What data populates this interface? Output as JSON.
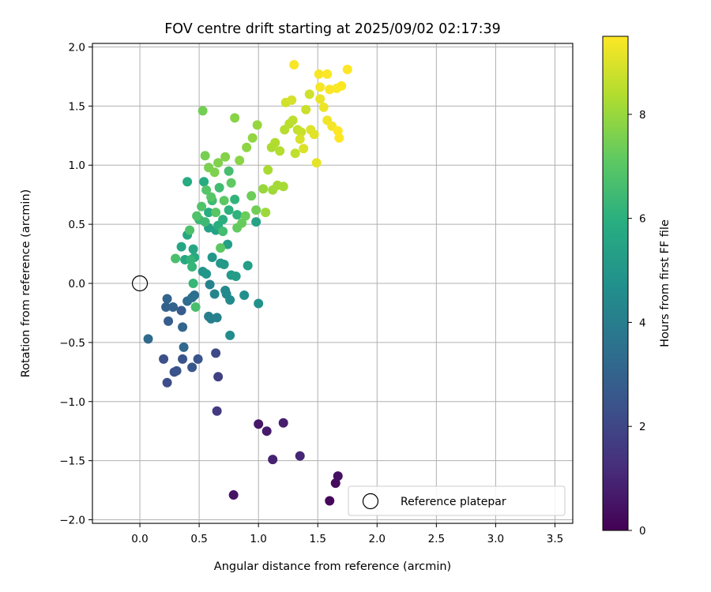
{
  "chart_data": {
    "type": "scatter",
    "title": "FOV centre drift starting at 2025/09/02 02:17:39",
    "xlabel": "Angular distance from reference (arcmin)",
    "ylabel": "Rotation from reference (arcmin)",
    "xlim": [
      -0.4,
      3.65
    ],
    "ylim": [
      -2.03,
      2.03
    ],
    "xticks": [
      0.0,
      0.5,
      1.0,
      1.5,
      2.0,
      2.5,
      3.0,
      3.5
    ],
    "xtick_labels": [
      "0.0",
      "0.5",
      "1.0",
      "1.5",
      "2.0",
      "2.5",
      "3.0",
      "3.5"
    ],
    "yticks": [
      -2.0,
      -1.5,
      -1.0,
      -0.5,
      0.0,
      0.5,
      1.0,
      1.5,
      2.0
    ],
    "ytick_labels": [
      "−2.0",
      "−1.5",
      "−1.0",
      "−0.5",
      "0.0",
      "0.5",
      "1.0",
      "1.5",
      "2.0"
    ],
    "grid": true,
    "colormap": "viridis",
    "colorbar": {
      "label": "Hours from first FF file",
      "range": [
        0,
        9.5
      ],
      "ticks": [
        0,
        2,
        4,
        6,
        8
      ],
      "tick_labels": [
        "0",
        "2",
        "4",
        "6",
        "8"
      ]
    },
    "legend": {
      "position": "lower-right",
      "entries": [
        "Reference platepar"
      ]
    },
    "reference": {
      "x": 0.0,
      "y": 0.0,
      "label": "Reference platepar"
    },
    "series": [
      {
        "columns": [
          "x",
          "y",
          "hours"
        ],
        "points": [
          [
            1.6,
            -1.84,
            0.2
          ],
          [
            1.65,
            -1.69,
            0.3
          ],
          [
            1.67,
            -1.63,
            0.4
          ],
          [
            0.79,
            -1.79,
            0.5
          ],
          [
            1.0,
            -1.19,
            0.6
          ],
          [
            1.07,
            -1.25,
            0.7
          ],
          [
            1.21,
            -1.18,
            0.8
          ],
          [
            1.12,
            -1.49,
            0.9
          ],
          [
            1.35,
            -1.46,
            1.0
          ],
          [
            0.65,
            -1.08,
            1.6
          ],
          [
            0.66,
            -0.79,
            1.8
          ],
          [
            0.64,
            -0.59,
            2.1
          ],
          [
            0.23,
            -0.84,
            2.2
          ],
          [
            0.2,
            -0.64,
            2.3
          ],
          [
            0.29,
            -0.75,
            2.35
          ],
          [
            0.31,
            -0.74,
            2.4
          ],
          [
            0.36,
            -0.64,
            2.45
          ],
          [
            0.49,
            -0.64,
            2.5
          ],
          [
            0.44,
            -0.71,
            2.6
          ],
          [
            0.35,
            -0.23,
            2.7
          ],
          [
            0.24,
            -0.32,
            2.8
          ],
          [
            0.22,
            -0.2,
            2.9
          ],
          [
            0.28,
            -0.2,
            3.0
          ],
          [
            0.23,
            -0.13,
            3.05
          ],
          [
            0.36,
            -0.37,
            3.1
          ],
          [
            0.37,
            -0.54,
            3.2
          ],
          [
            0.07,
            -0.47,
            3.3
          ],
          [
            0.4,
            -0.15,
            3.35
          ],
          [
            0.46,
            -0.1,
            3.4
          ],
          [
            0.44,
            -0.12,
            3.45
          ],
          [
            0.58,
            -0.28,
            4.0
          ],
          [
            0.6,
            -0.3,
            4.05
          ],
          [
            0.65,
            -0.29,
            4.1
          ],
          [
            0.59,
            -0.01,
            4.2
          ],
          [
            0.63,
            -0.09,
            4.3
          ],
          [
            0.72,
            -0.06,
            4.4
          ],
          [
            0.73,
            -0.09,
            4.45
          ],
          [
            0.76,
            -0.14,
            4.5
          ],
          [
            0.76,
            -0.44,
            4.6
          ],
          [
            0.88,
            -0.1,
            4.7
          ],
          [
            1.0,
            -0.17,
            4.8
          ],
          [
            0.53,
            0.1,
            4.9
          ],
          [
            0.56,
            0.08,
            4.95
          ],
          [
            0.61,
            0.22,
            5.0
          ],
          [
            0.68,
            0.17,
            5.05
          ],
          [
            0.71,
            0.16,
            5.1
          ],
          [
            0.77,
            0.07,
            5.15
          ],
          [
            0.81,
            0.06,
            5.2
          ],
          [
            0.91,
            0.15,
            5.3
          ],
          [
            0.74,
            0.33,
            5.35
          ],
          [
            0.58,
            0.47,
            5.4
          ],
          [
            0.64,
            0.45,
            5.45
          ],
          [
            0.98,
            0.52,
            5.5
          ],
          [
            0.35,
            0.31,
            5.55
          ],
          [
            0.4,
            0.41,
            5.6
          ],
          [
            0.45,
            0.29,
            5.65
          ],
          [
            0.38,
            0.2,
            5.7
          ],
          [
            0.46,
            0.22,
            5.75
          ],
          [
            0.4,
            0.86,
            5.8
          ],
          [
            0.54,
            0.86,
            5.85
          ],
          [
            0.58,
            0.6,
            5.9
          ],
          [
            0.66,
            0.49,
            5.95
          ],
          [
            0.7,
            0.54,
            6.0
          ],
          [
            0.75,
            0.62,
            6.05
          ],
          [
            0.82,
            0.58,
            6.1
          ],
          [
            0.8,
            0.71,
            6.15
          ],
          [
            0.43,
            0.2,
            6.2
          ],
          [
            0.44,
            0.14,
            6.25
          ],
          [
            0.45,
            0.0,
            6.3
          ],
          [
            0.5,
            0.54,
            6.35
          ],
          [
            0.55,
            0.52,
            6.4
          ],
          [
            0.61,
            0.7,
            6.45
          ],
          [
            0.67,
            0.81,
            6.5
          ],
          [
            0.7,
            0.44,
            6.55
          ],
          [
            0.75,
            0.95,
            6.6
          ],
          [
            0.47,
            -0.2,
            6.65
          ],
          [
            0.3,
            0.21,
            6.7
          ],
          [
            0.42,
            0.45,
            6.75
          ],
          [
            0.48,
            0.57,
            6.8
          ],
          [
            0.52,
            0.65,
            6.85
          ],
          [
            0.56,
            0.79,
            6.9
          ],
          [
            0.6,
            0.73,
            6.95
          ],
          [
            0.64,
            0.6,
            7.0
          ],
          [
            0.68,
            0.3,
            7.05
          ],
          [
            0.71,
            0.7,
            7.1
          ],
          [
            0.77,
            0.85,
            7.15
          ],
          [
            0.82,
            0.47,
            7.2
          ],
          [
            0.86,
            0.51,
            7.25
          ],
          [
            0.89,
            0.57,
            7.3
          ],
          [
            0.94,
            0.74,
            7.35
          ],
          [
            0.98,
            0.62,
            7.4
          ],
          [
            0.53,
            1.46,
            7.45
          ],
          [
            0.55,
            1.08,
            7.5
          ],
          [
            0.58,
            0.98,
            7.55
          ],
          [
            0.63,
            0.94,
            7.6
          ],
          [
            0.66,
            1.02,
            7.65
          ],
          [
            0.72,
            1.07,
            7.7
          ],
          [
            0.8,
            1.4,
            7.75
          ],
          [
            0.84,
            1.04,
            7.8
          ],
          [
            0.9,
            1.15,
            7.85
          ],
          [
            0.95,
            1.23,
            7.9
          ],
          [
            0.99,
            1.34,
            7.95
          ],
          [
            1.04,
            0.8,
            8.0
          ],
          [
            1.06,
            0.6,
            8.05
          ],
          [
            1.12,
            0.79,
            8.1
          ],
          [
            1.16,
            0.83,
            8.15
          ],
          [
            1.21,
            0.82,
            8.2
          ],
          [
            1.08,
            0.96,
            8.25
          ],
          [
            1.11,
            1.15,
            8.3
          ],
          [
            1.14,
            1.19,
            8.35
          ],
          [
            1.18,
            1.12,
            8.4
          ],
          [
            1.22,
            1.3,
            8.45
          ],
          [
            1.26,
            1.35,
            8.5
          ],
          [
            1.29,
            1.38,
            8.55
          ],
          [
            1.31,
            1.1,
            8.6
          ],
          [
            1.33,
            1.3,
            8.65
          ],
          [
            1.36,
            1.28,
            8.7
          ],
          [
            1.4,
            1.47,
            8.75
          ],
          [
            1.43,
            1.6,
            8.8
          ],
          [
            1.23,
            1.53,
            8.85
          ],
          [
            1.28,
            1.55,
            8.9
          ],
          [
            1.35,
            1.22,
            8.95
          ],
          [
            1.38,
            1.14,
            9.0
          ],
          [
            1.44,
            1.3,
            9.05
          ],
          [
            1.47,
            1.26,
            9.1
          ],
          [
            1.49,
            1.02,
            9.15
          ],
          [
            1.52,
            1.56,
            9.2
          ],
          [
            1.55,
            1.49,
            9.25
          ],
          [
            1.58,
            1.38,
            9.3
          ],
          [
            1.62,
            1.33,
            9.35
          ],
          [
            1.3,
            1.85,
            9.4
          ],
          [
            1.51,
            1.77,
            9.42
          ],
          [
            1.6,
            1.64,
            9.44
          ],
          [
            1.66,
            1.65,
            9.46
          ],
          [
            1.7,
            1.67,
            9.48
          ],
          [
            1.75,
            1.81,
            9.5
          ],
          [
            1.67,
            1.29,
            9.5
          ],
          [
            1.68,
            1.23,
            9.5
          ],
          [
            1.58,
            1.77,
            9.45
          ],
          [
            1.52,
            1.66,
            9.4
          ]
        ]
      }
    ]
  }
}
